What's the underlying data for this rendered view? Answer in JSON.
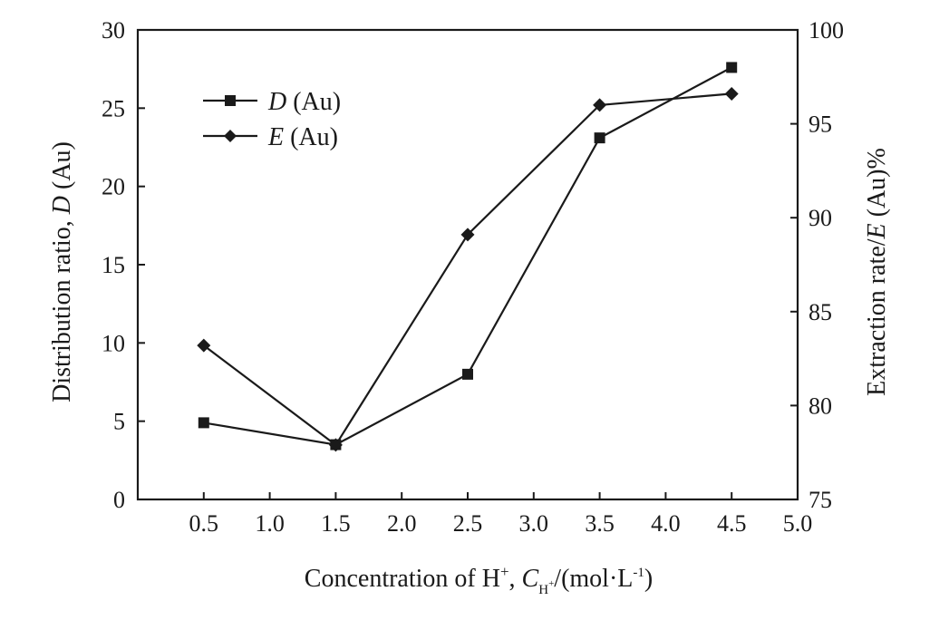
{
  "chart_data": {
    "type": "line",
    "x": [
      0.5,
      1.5,
      2.5,
      3.5,
      4.5
    ],
    "xlim": [
      0,
      5.0
    ],
    "xticks": [
      "0.5",
      "1.0",
      "1.5",
      "2.0",
      "2.5",
      "3.0",
      "3.5",
      "4.0",
      "4.5",
      "5.0"
    ],
    "xlabel": {
      "main": "Concentration of H",
      "sup": "+",
      "sep": ", ",
      "var": "C",
      "var_sub": "H",
      "var_sub_sup": "+",
      "unit_open": "/(mol·L",
      "unit_sup": "-1",
      "unit_close": ")"
    },
    "y_left": {
      "label_plain": "Distribution ratio, ",
      "label_italic": "D",
      "label_tail": " (Au)",
      "ylim": [
        0,
        30
      ],
      "ticks": [
        "0",
        "5",
        "10",
        "15",
        "20",
        "25",
        "30"
      ]
    },
    "y_right": {
      "label_plain": "Extraction rate/",
      "label_italic": "E",
      "label_tail": " (Au)%",
      "ylim": [
        75,
        100
      ],
      "ticks": [
        "75",
        "80",
        "85",
        "90",
        "95",
        "100"
      ]
    },
    "series": [
      {
        "name": "D (Au)",
        "name_italic": "D",
        "name_tail": " (Au)",
        "axis": "left",
        "marker": "square",
        "values": [
          4.9,
          3.5,
          8.0,
          23.1,
          27.6
        ]
      },
      {
        "name": "E (Au)",
        "name_italic": "E",
        "name_tail": " (Au)",
        "axis": "right",
        "marker": "diamond",
        "values": [
          83.2,
          77.9,
          89.1,
          96.0,
          96.6
        ]
      }
    ],
    "legend_position": "top-left",
    "grid": false,
    "colors": {
      "ink": "#1a1a1a",
      "background": "#ffffff"
    }
  }
}
